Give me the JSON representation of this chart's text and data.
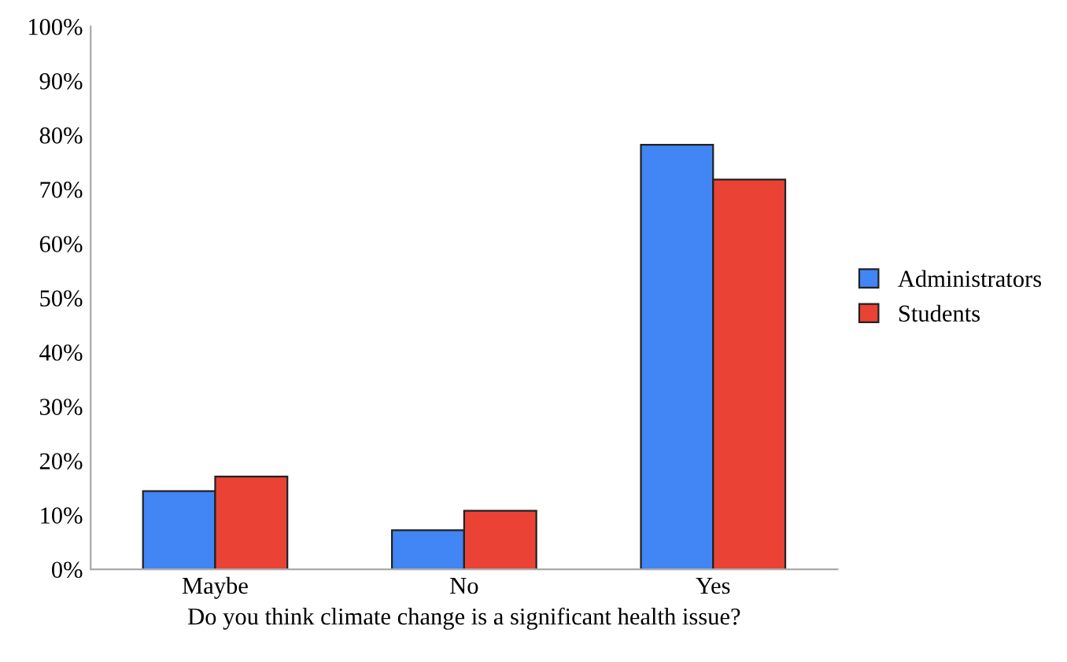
{
  "chart_data": {
    "type": "bar",
    "xlabel": "Do you think climate change is a significant health issue?",
    "categories": [
      "Maybe",
      "No",
      "Yes"
    ],
    "series": [
      {
        "name": "Administrators",
        "color": "#4285f4",
        "values": [
          14.4,
          7.2,
          78.2
        ]
      },
      {
        "name": "Students",
        "color": "#ea4335",
        "values": [
          17.1,
          10.8,
          71.8
        ]
      }
    ],
    "ylim": [
      0,
      100
    ],
    "yticks": [
      {
        "value": 0,
        "label": "0%"
      },
      {
        "value": 10,
        "label": "10%"
      },
      {
        "value": 20,
        "label": "20%"
      },
      {
        "value": 30,
        "label": "30%"
      },
      {
        "value": 40,
        "label": "40%"
      },
      {
        "value": 50,
        "label": "50%"
      },
      {
        "value": 60,
        "label": "60%"
      },
      {
        "value": 70,
        "label": "70%"
      },
      {
        "value": 80,
        "label": "80%"
      },
      {
        "value": 90,
        "label": "90%"
      },
      {
        "value": 100,
        "label": "100%"
      }
    ],
    "grid": false,
    "legend": "right"
  }
}
